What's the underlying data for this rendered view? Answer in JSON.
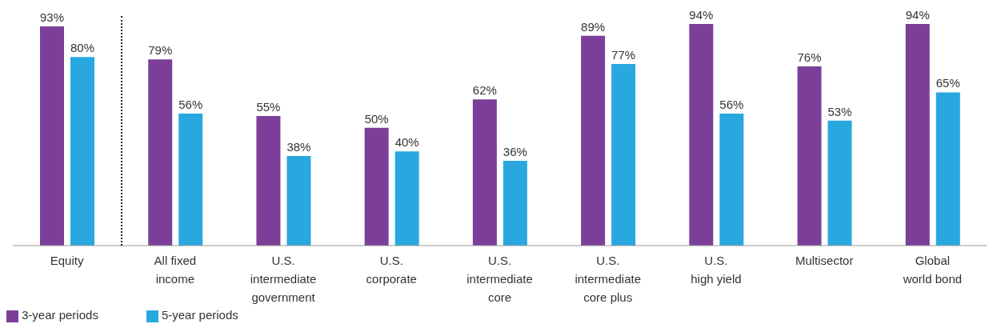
{
  "chart_data": {
    "type": "bar",
    "categories": [
      "Equity",
      "All fixed\nincome",
      "U.S.\nintermediate\ngovernment",
      "U.S.\ncorporate",
      "U.S.\nintermediate\ncore",
      "U.S.\nintermediate\ncore plus",
      "U.S.\nhigh yield",
      "Multisector",
      "Global\nworld bond"
    ],
    "series": [
      {
        "name": "3-year periods",
        "color": "#7b3f99",
        "values": [
          93,
          79,
          55,
          50,
          62,
          89,
          94,
          76,
          94
        ],
        "value_labels": [
          "93%",
          "79%",
          "55%",
          "50%",
          "62%",
          "89%",
          "94%",
          "76%",
          "94%"
        ]
      },
      {
        "name": "5-year periods",
        "color": "#29a8e0",
        "values": [
          80,
          56,
          38,
          40,
          36,
          77,
          56,
          53,
          65
        ],
        "value_labels": [
          "80%",
          "56%",
          "38%",
          "40%",
          "36%",
          "77%",
          "56%",
          "53%",
          "65%"
        ]
      }
    ],
    "legend": "bottom left"
  }
}
